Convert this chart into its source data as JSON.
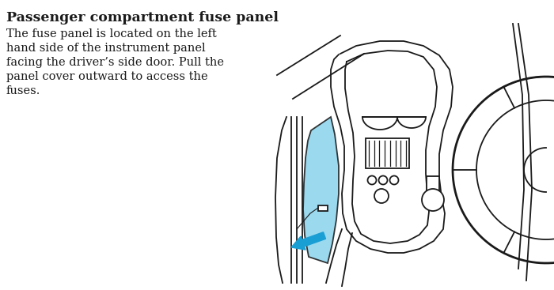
{
  "title": "Passenger compartment fuse panel",
  "body_lines": [
    "The fuse panel is located on the left",
    "hand side of the instrument panel",
    "facing the driver’s side door. Pull the",
    "panel cover outward to access the",
    "fuses."
  ],
  "bg_color": "#ffffff",
  "line_color": "#1a1a1a",
  "blue_fill": "#8dd4ed",
  "arrow_color": "#1a9fd4",
  "fig_width": 7.0,
  "fig_height": 3.67
}
